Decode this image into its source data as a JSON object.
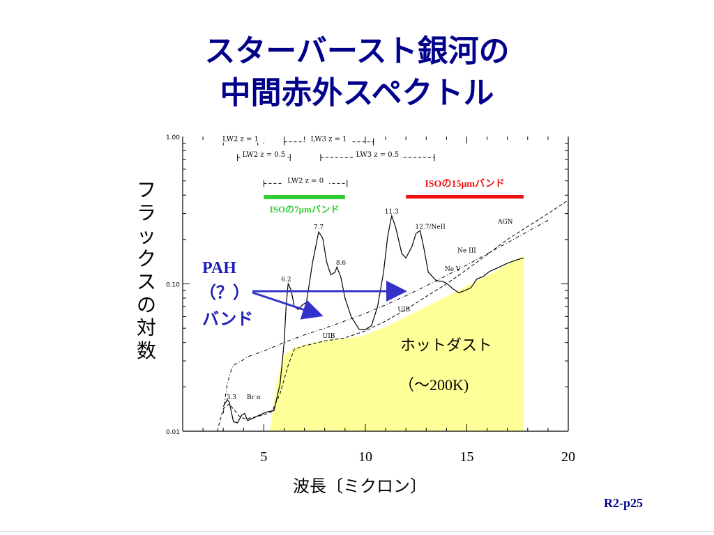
{
  "slide": {
    "title_line1": "スターバースト銀河の",
    "title_line2": "中間赤外スペクトル",
    "page_number": "R2-p25"
  },
  "colors": {
    "title": "#00008b",
    "pah_text": "#1f1fb4",
    "arrow": "#3333cc",
    "iso7_band": "#33cc33",
    "iso15_band": "#ee1111",
    "hot_dust_fill": "#ffff99"
  },
  "chart_data": {
    "type": "line",
    "title": "",
    "xlabel": "波長〔ミクロン〕",
    "ylabel": "フラックスの対数",
    "y_scale": "log",
    "xlim": [
      1,
      20
    ],
    "ylim": [
      0.01,
      1.0
    ],
    "x_ticks": [
      "5",
      "10",
      "15",
      "20"
    ],
    "y_ticks": [
      "1.00",
      "0.10",
      "0.01"
    ],
    "series": [
      {
        "name": "",
        "style": "solid",
        "points": [
          [
            3.0,
            0.0147
          ],
          [
            3.2,
            0.0164
          ],
          [
            3.3,
            0.0157
          ],
          [
            3.5,
            0.0116
          ],
          [
            3.7,
            0.0114
          ],
          [
            3.9,
            0.0128
          ],
          [
            4.05,
            0.0132
          ],
          [
            4.2,
            0.0118
          ],
          [
            4.5,
            0.0123
          ],
          [
            4.8,
            0.0129
          ],
          [
            5.2,
            0.0136
          ],
          [
            5.5,
            0.0138
          ],
          [
            5.8,
            0.021
          ],
          [
            6.0,
            0.04
          ],
          [
            6.1,
            0.071
          ],
          [
            6.2,
            0.101
          ],
          [
            6.35,
            0.09
          ],
          [
            6.5,
            0.07
          ],
          [
            6.7,
            0.067
          ],
          [
            6.9,
            0.072
          ],
          [
            7.1,
            0.075
          ],
          [
            7.4,
            0.14
          ],
          [
            7.7,
            0.225
          ],
          [
            7.9,
            0.205
          ],
          [
            8.1,
            0.14
          ],
          [
            8.3,
            0.115
          ],
          [
            8.5,
            0.12
          ],
          [
            8.6,
            0.13
          ],
          [
            8.8,
            0.11
          ],
          [
            9.0,
            0.08
          ],
          [
            9.3,
            0.06
          ],
          [
            9.7,
            0.049
          ],
          [
            10.0,
            0.049
          ],
          [
            10.3,
            0.052
          ],
          [
            10.6,
            0.07
          ],
          [
            10.9,
            0.12
          ],
          [
            11.1,
            0.21
          ],
          [
            11.3,
            0.29
          ],
          [
            11.5,
            0.24
          ],
          [
            11.8,
            0.16
          ],
          [
            12.0,
            0.15
          ],
          [
            12.3,
            0.18
          ],
          [
            12.5,
            0.22
          ],
          [
            12.7,
            0.23
          ],
          [
            12.9,
            0.17
          ],
          [
            13.1,
            0.12
          ],
          [
            13.5,
            0.105
          ],
          [
            13.8,
            0.104
          ],
          [
            14.0,
            0.101
          ],
          [
            14.3,
            0.093
          ],
          [
            14.6,
            0.087
          ],
          [
            14.9,
            0.09
          ],
          [
            15.2,
            0.094
          ],
          [
            15.5,
            0.108
          ],
          [
            15.8,
            0.112
          ],
          [
            16.1,
            0.121
          ],
          [
            16.5,
            0.128
          ],
          [
            17.0,
            0.138
          ],
          [
            17.5,
            0.146
          ],
          [
            17.8,
            0.15
          ]
        ]
      },
      {
        "name": "",
        "style": "dash-dot",
        "points": [
          [
            3.0,
            0.0132
          ],
          [
            3.1,
            0.017
          ],
          [
            3.2,
            0.021
          ],
          [
            3.35,
            0.025
          ],
          [
            3.5,
            0.028
          ],
          [
            3.9,
            0.03
          ],
          [
            4.2,
            0.032
          ],
          [
            5.0,
            0.035
          ],
          [
            6.0,
            0.04
          ],
          [
            7.0,
            0.045
          ],
          [
            8.0,
            0.05
          ],
          [
            9.0,
            0.056
          ],
          [
            10.0,
            0.063
          ],
          [
            11.0,
            0.072
          ],
          [
            12.0,
            0.083
          ],
          [
            13.0,
            0.097
          ],
          [
            14.0,
            0.114
          ],
          [
            15.0,
            0.134
          ],
          [
            16.0,
            0.16
          ],
          [
            17.0,
            0.19
          ],
          [
            18.0,
            0.227
          ],
          [
            19.0,
            0.27
          ]
        ]
      },
      {
        "name": "",
        "style": "dashed",
        "points": [
          [
            2.7,
            0.01
          ],
          [
            3.0,
            0.0142
          ],
          [
            3.3,
            0.0153
          ],
          [
            3.8,
            0.0126
          ],
          [
            4.1,
            0.0121
          ],
          [
            5.0,
            0.0129
          ],
          [
            5.4,
            0.0136
          ],
          [
            5.8,
            0.018
          ],
          [
            6.2,
            0.028
          ],
          [
            6.5,
            0.036
          ],
          [
            7.0,
            0.038
          ],
          [
            8.0,
            0.041
          ],
          [
            8.5,
            0.042
          ],
          [
            9.0,
            0.043
          ],
          [
            10.0,
            0.048
          ],
          [
            11.0,
            0.056
          ],
          [
            12.0,
            0.067
          ],
          [
            13.0,
            0.082
          ],
          [
            14.0,
            0.1
          ],
          [
            15.0,
            0.125
          ],
          [
            16.0,
            0.158
          ],
          [
            17.0,
            0.2
          ],
          [
            18.0,
            0.245
          ],
          [
            19.0,
            0.3
          ],
          [
            20.0,
            0.37
          ]
        ]
      }
    ],
    "hot_dust_region": {
      "label_line1": "ホットダスト",
      "label_line2": "（〜200K)",
      "boundary": [
        [
          5.3,
          0.01
        ],
        [
          5.6,
          0.021
        ],
        [
          6.0,
          0.033
        ],
        [
          6.5,
          0.037
        ],
        [
          7.5,
          0.04
        ],
        [
          8.5,
          0.042
        ],
        [
          9.3,
          0.043
        ],
        [
          10.0,
          0.045
        ],
        [
          11.0,
          0.051
        ],
        [
          12.0,
          0.06
        ],
        [
          13.0,
          0.07
        ],
        [
          14.0,
          0.082
        ],
        [
          15.0,
          0.097
        ],
        [
          16.0,
          0.114
        ],
        [
          17.0,
          0.135
        ],
        [
          17.8,
          0.155
        ],
        [
          17.8,
          0.01
        ]
      ]
    },
    "filter_bands": [
      {
        "label": "LW2   z = 1",
        "x_range": [
          3.0,
          4.7
        ],
        "y": 0.92
      },
      {
        "label": "LW3   z = 1",
        "x_range": [
          6.0,
          10.4
        ],
        "y": 0.92
      },
      {
        "label": "LW2   z = 0.5",
        "x_range": [
          3.7,
          6.3
        ],
        "y": 0.72
      },
      {
        "label": "LW3   z = 0.5",
        "x_range": [
          7.8,
          13.4
        ],
        "y": 0.72
      },
      {
        "label": "LW2   z = 0",
        "x_range": [
          5.0,
          9.1
        ],
        "y": 0.48
      }
    ],
    "iso_bands": [
      {
        "label": "ISOの7μmバンド",
        "x_range": [
          5.0,
          9.0
        ],
        "color": "#33cc33"
      },
      {
        "label": "ISOの15μmバンド",
        "x_range": [
          12.0,
          17.8
        ],
        "color": "#ee1111"
      }
    ],
    "annotations": [
      "3.3",
      "Br α",
      "6.2",
      "7.7",
      "8.6",
      "11.3",
      "12.7/NeII",
      "AGN",
      "Ne III",
      "Ne V",
      "UIB",
      "UIB"
    ],
    "pah": {
      "label_line1": "PAH",
      "label_line2": "（？）",
      "label_line3": "バンド"
    },
    "grid": false
  }
}
